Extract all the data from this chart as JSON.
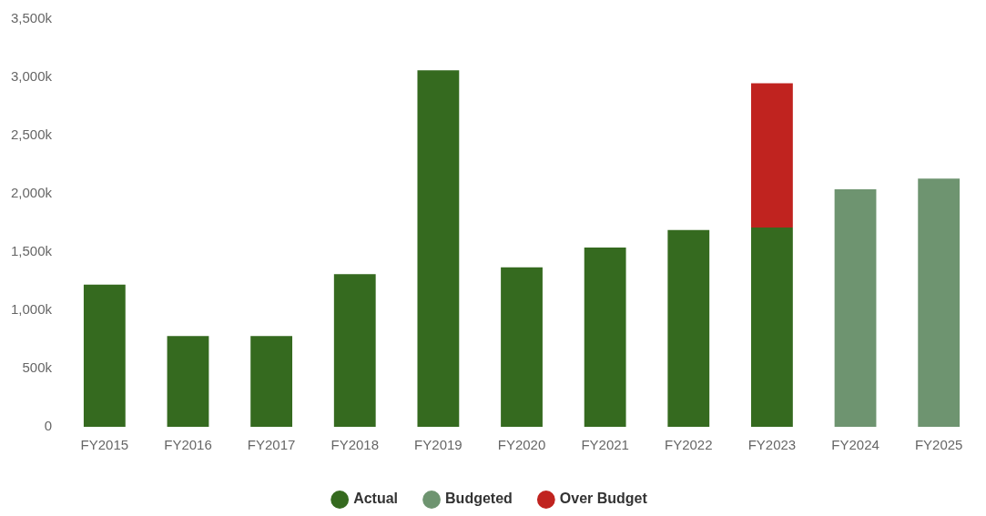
{
  "chart_data": {
    "type": "bar",
    "stacked": true,
    "categories": [
      "FY2015",
      "FY2016",
      "FY2017",
      "FY2018",
      "FY2019",
      "FY2020",
      "FY2021",
      "FY2022",
      "FY2023",
      "FY2024",
      "FY2025"
    ],
    "series": [
      {
        "name": "Actual",
        "color": "#356a1f",
        "values": [
          1220,
          780,
          780,
          1310,
          3060,
          1370,
          1540,
          1690,
          1710,
          null,
          null
        ]
      },
      {
        "name": "Budgeted",
        "color": "#6e9470",
        "values": [
          null,
          null,
          null,
          null,
          null,
          null,
          null,
          null,
          null,
          2040,
          2130
        ]
      },
      {
        "name": "Over Budget",
        "color": "#c0231f",
        "values": [
          null,
          null,
          null,
          null,
          null,
          null,
          null,
          null,
          1240,
          null,
          null
        ]
      }
    ],
    "ylim": [
      0,
      3500
    ],
    "yticks": [
      0,
      {
        "value": 500,
        "label": "500k"
      },
      {
        "value": 1000,
        "label": "1,000k"
      },
      {
        "value": 1500,
        "label": "1,500k"
      },
      {
        "value": 2000,
        "label": "2,000k"
      },
      {
        "value": 2500,
        "label": "2,500k"
      },
      {
        "value": 3000,
        "label": "3,000k"
      },
      {
        "value": 3500,
        "label": "3,500k"
      }
    ],
    "grid": false,
    "legend": "bottom"
  }
}
